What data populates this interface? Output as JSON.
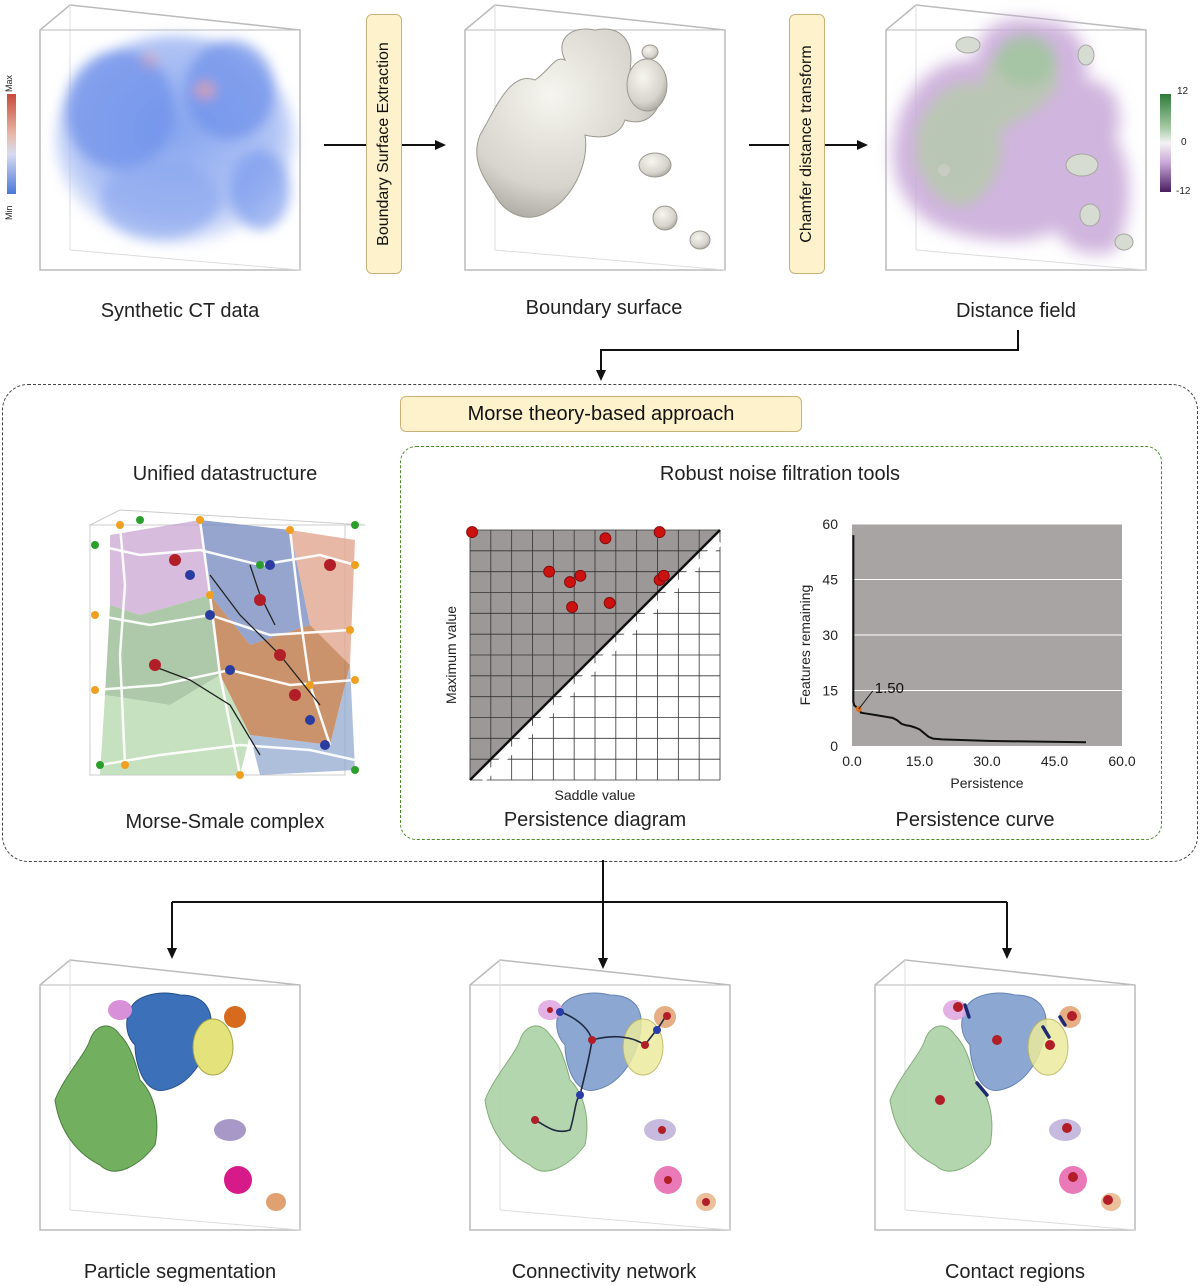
{
  "top": {
    "captions": [
      "Synthetic CT data",
      "Boundary surface",
      "Distance field"
    ],
    "steps": [
      "Boundary Surface Extraction",
      "Chamfer distance transform"
    ],
    "ct_colorbar": {
      "max": "Max",
      "min": "Min"
    },
    "distance_colorbar": {
      "top": "12",
      "mid": "0",
      "bottom": "-12"
    }
  },
  "middle": {
    "title": "Morse theory-based approach",
    "left_title": "Unified datastructure",
    "left_caption": "Morse-Smale complex",
    "tools_title": "Robust noise filtration tools",
    "diagram_caption": "Persistence diagram",
    "curve_caption": "Persistence curve"
  },
  "bottom": {
    "captions": [
      "Particle segmentation",
      "Connectivity network",
      "Contact regions"
    ]
  },
  "colors": {
    "box_fill": "#fdf2cc",
    "box_border": "#c9b27a",
    "dashed_outer": "#444444",
    "dashed_inner": "#4a8a2a",
    "plot_gray": "#a8a4a4",
    "point_red": "#cc1111"
  },
  "chart_data": [
    {
      "type": "scatter",
      "title": "Persistence diagram",
      "xlabel": "Saddle value",
      "ylabel": "Maximum value",
      "xlim": [
        0,
        12
      ],
      "ylim": [
        0,
        12
      ],
      "grid": true,
      "diagonal": true,
      "points": [
        {
          "x": 0.1,
          "y": 11.9
        },
        {
          "x": 9.1,
          "y": 11.9
        },
        {
          "x": 6.5,
          "y": 11.6
        },
        {
          "x": 3.8,
          "y": 10.0
        },
        {
          "x": 4.8,
          "y": 9.5
        },
        {
          "x": 5.3,
          "y": 9.8
        },
        {
          "x": 4.9,
          "y": 8.3
        },
        {
          "x": 6.7,
          "y": 8.5
        },
        {
          "x": 9.1,
          "y": 9.6
        },
        {
          "x": 9.3,
          "y": 9.8
        }
      ]
    },
    {
      "type": "line",
      "title": "Persistence curve",
      "xlabel": "Persistence",
      "ylabel": "Features remaining",
      "xlim": [
        0,
        60
      ],
      "ylim": [
        0,
        60
      ],
      "xticks": [
        "0.0",
        "15.0",
        "30.0",
        "45.0",
        "60.0"
      ],
      "yticks": [
        "0",
        "15",
        "30",
        "45",
        "60"
      ],
      "annotation": {
        "label": "1.50",
        "x": 1.5
      },
      "series": [
        {
          "x": [
            0.3,
            0.3,
            0.5,
            1.0,
            1.5,
            2.0,
            3.0,
            5.0,
            7.0,
            9.0,
            10.0,
            11.0,
            12.0,
            13.0,
            14.0,
            15.0,
            16.0,
            17.0,
            18.0,
            20.0,
            25.0,
            30.0,
            40.0,
            52.0
          ],
          "y": [
            57,
            12,
            11,
            10.5,
            10,
            9,
            8.8,
            8.4,
            8,
            7.6,
            7,
            6,
            5.6,
            5.4,
            5,
            4.5,
            3.5,
            2.5,
            2,
            1.8,
            1.6,
            1.4,
            1.2,
            1.0
          ]
        }
      ]
    }
  ]
}
